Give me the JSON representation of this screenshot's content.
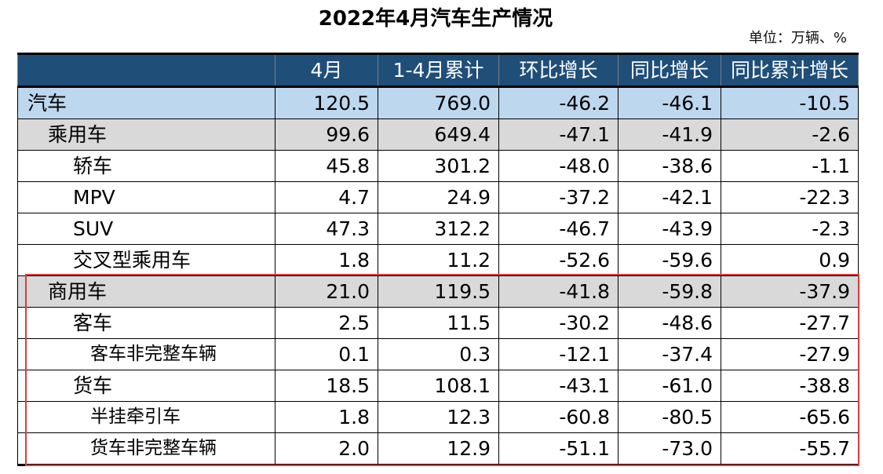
{
  "title": "2022年4月汽车生产情况",
  "unit_label": "单位：万辆、%",
  "table": {
    "headers": [
      "",
      "4月",
      "1-4月累计",
      "环比增长",
      "同比增长",
      "同比累计增长"
    ],
    "rows": [
      {
        "name": "汽车",
        "level": 0,
        "values": [
          "120.5",
          "769.0",
          "-46.2",
          "-46.1",
          "-10.5"
        ]
      },
      {
        "name": "乘用车",
        "level": 1,
        "values": [
          "99.6",
          "649.4",
          "-47.1",
          "-41.9",
          "-2.6"
        ]
      },
      {
        "name": "轿车",
        "level": 2,
        "values": [
          "45.8",
          "301.2",
          "-48.0",
          "-38.6",
          "-1.1"
        ]
      },
      {
        "name": "MPV",
        "level": 2,
        "values": [
          "4.7",
          "24.9",
          "-37.2",
          "-42.1",
          "-22.3"
        ]
      },
      {
        "name": "SUV",
        "level": 2,
        "values": [
          "47.3",
          "312.2",
          "-46.7",
          "-43.9",
          "-2.3"
        ]
      },
      {
        "name": "交叉型乘用车",
        "level": 2,
        "values": [
          "1.8",
          "11.2",
          "-52.6",
          "-59.6",
          "0.9"
        ]
      },
      {
        "name": "商用车",
        "level": 1,
        "values": [
          "21.0",
          "119.5",
          "-41.8",
          "-59.8",
          "-37.9"
        ]
      },
      {
        "name": "客车",
        "level": 2,
        "values": [
          "2.5",
          "11.5",
          "-30.2",
          "-48.6",
          "-27.7"
        ]
      },
      {
        "name": "客车非完整车辆",
        "level": 3,
        "values": [
          "0.1",
          "0.3",
          "-12.1",
          "-37.4",
          "-27.9"
        ]
      },
      {
        "name": "货车",
        "level": 2,
        "values": [
          "18.5",
          "108.1",
          "-43.1",
          "-61.0",
          "-38.8"
        ]
      },
      {
        "name": "半挂牵引车",
        "level": 3,
        "values": [
          "1.8",
          "12.3",
          "-60.8",
          "-80.5",
          "-65.6"
        ]
      },
      {
        "name": "货车非完整车辆",
        "level": 3,
        "values": [
          "2.0",
          "12.9",
          "-51.1",
          "-73.0",
          "-55.7"
        ]
      }
    ]
  },
  "colors": {
    "header_bg": "#1f4e79",
    "level0_bg": "#bdd7ee",
    "level1_bg": "#d9d9d9",
    "highlight_border": "#e03a3a"
  }
}
